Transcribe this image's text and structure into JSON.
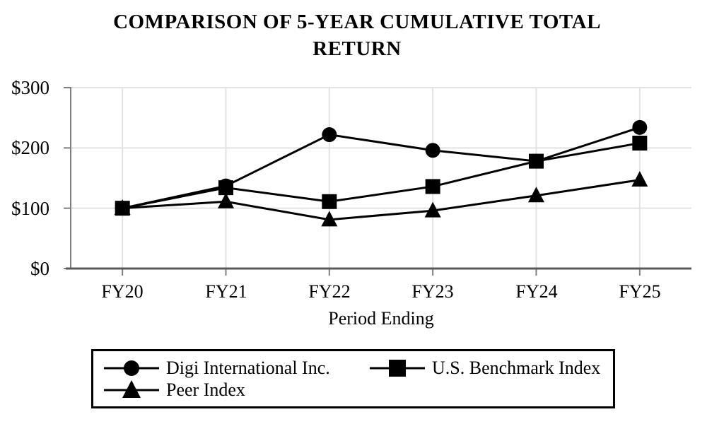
{
  "title": {
    "line1": "COMPARISON OF 5-YEAR CUMULATIVE TOTAL",
    "line2": "RETURN"
  },
  "chart_data": {
    "type": "line",
    "title": "COMPARISON OF 5-YEAR CUMULATIVE TOTAL RETURN",
    "categories": [
      "FY20",
      "FY21",
      "FY22",
      "FY23",
      "FY24",
      "FY25"
    ],
    "series": [
      {
        "name": "Digi International Inc.",
        "marker": "circle",
        "color": "#000000",
        "values": [
          100,
          137,
          222,
          196,
          178,
          234
        ]
      },
      {
        "name": "U.S. Benchmark Index",
        "marker": "square",
        "color": "#000000",
        "values": [
          100,
          134,
          111,
          136,
          178,
          208
        ]
      },
      {
        "name": "Peer Index",
        "marker": "triangle",
        "color": "#000000",
        "values": [
          100,
          111,
          81,
          96,
          121,
          147
        ]
      }
    ],
    "xlabel": "Period Ending",
    "ylabel": "",
    "ylim": [
      0,
      300
    ],
    "y_ticks": [
      {
        "label": "$300",
        "value": 300
      },
      {
        "label": "$200",
        "value": 200
      },
      {
        "label": "$100",
        "value": 100
      },
      {
        "label": "$0",
        "value": 0
      }
    ],
    "grid": true,
    "legend_position": "bottom"
  },
  "colors": {
    "line": "#000000",
    "grid": "#e2e2e2",
    "axis": "#7f7f7f",
    "axis_bottom": "#595959",
    "text": "#000000",
    "background": "#ffffff",
    "legend_border": "#000000"
  }
}
